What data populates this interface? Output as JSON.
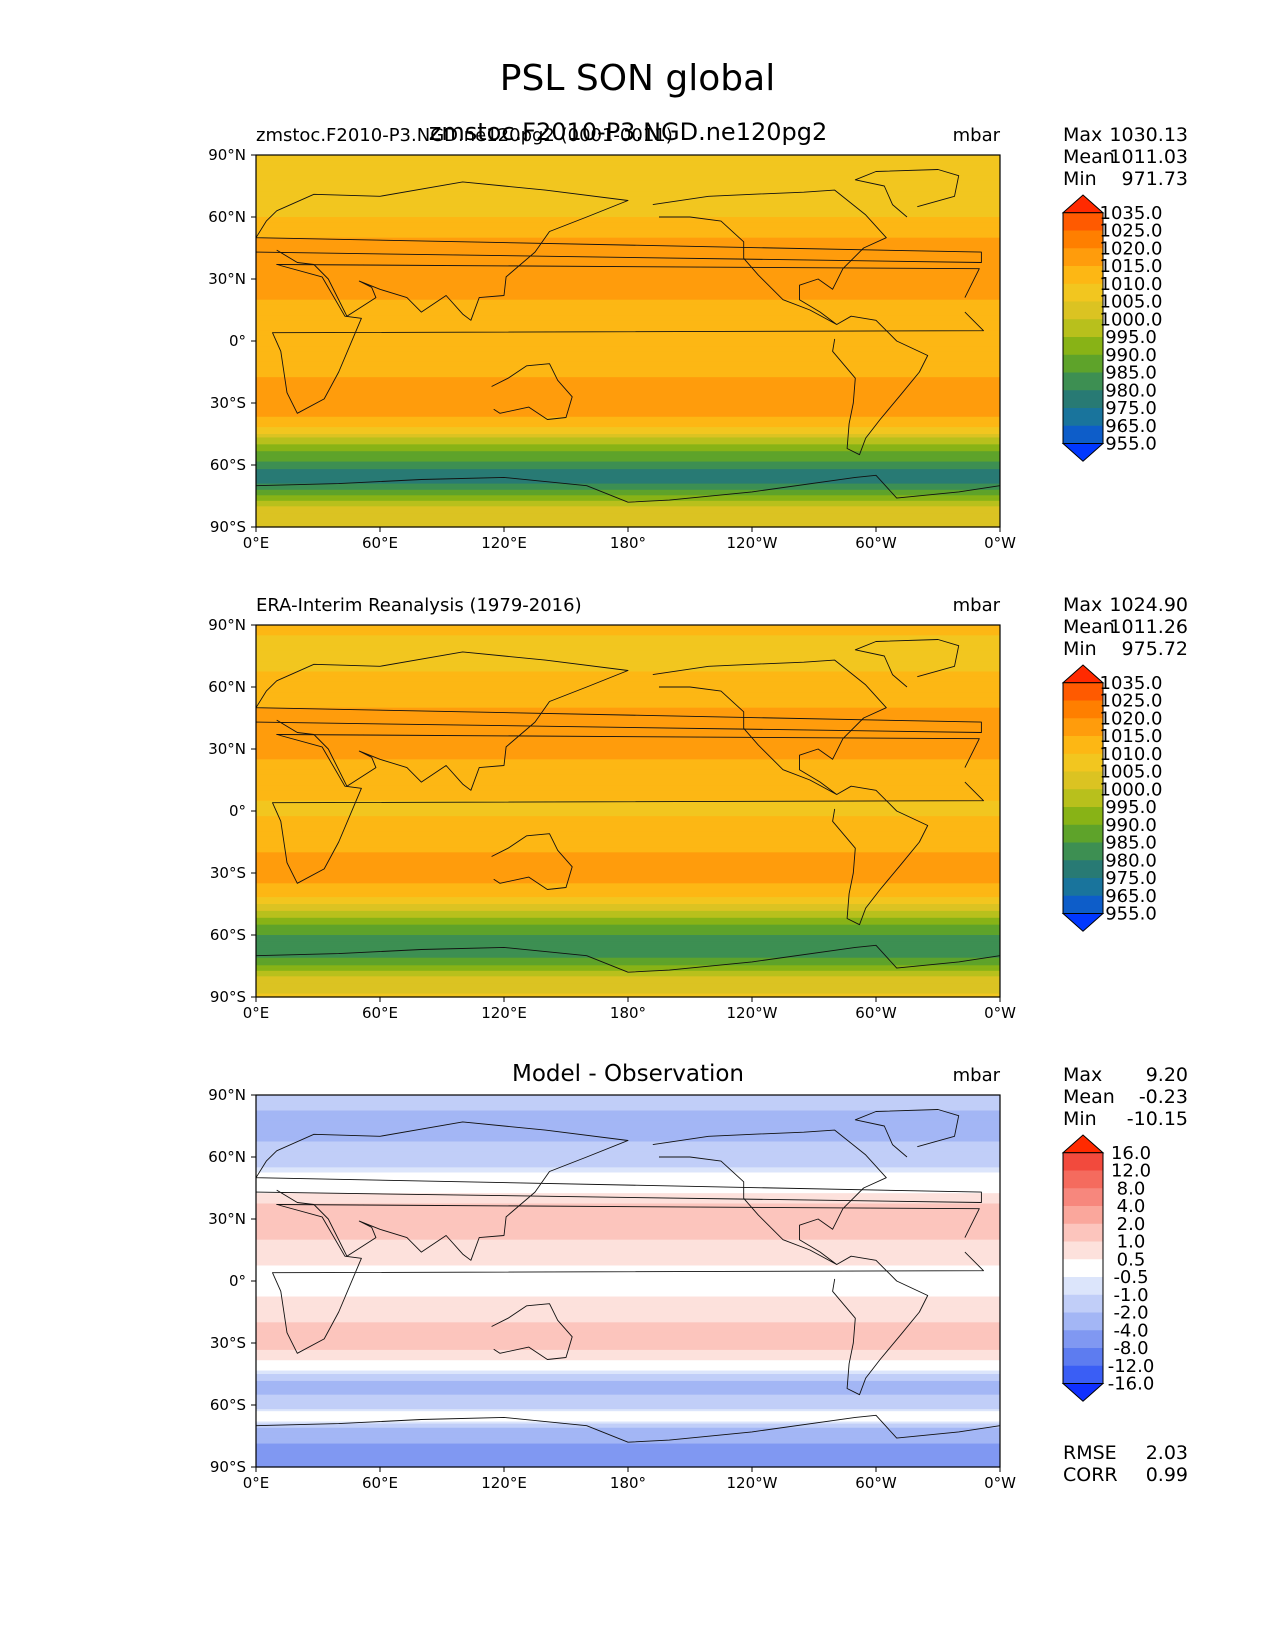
{
  "figure_title": "PSL SON global",
  "chart_data": [
    {
      "type": "contour_map",
      "title": "zmstoc.F2010-P3.NGD.ne120pg2",
      "left_label": "zmstoc.F2010-P3.NGD.ne120pg2 (0001-0011)",
      "units": "mbar",
      "xlabel": "",
      "ylabel": "",
      "x_ticks": [
        "0°E",
        "60°E",
        "120°E",
        "180°",
        "120°W",
        "60°W",
        "0°W"
      ],
      "y_ticks": [
        "90°N",
        "60°N",
        "30°N",
        "0°",
        "30°S",
        "60°S",
        "90°S"
      ],
      "stats": [
        {
          "label": "Max",
          "value": "1030.13"
        },
        {
          "label": "Mean",
          "value": "1011.03"
        },
        {
          "label": "Min",
          "value": "971.73"
        }
      ],
      "colorbar": {
        "levels": [
          "1035.0",
          "1025.0",
          "1020.0",
          "1015.0",
          "1010.0",
          "1005.0",
          "1000.0",
          "995.0",
          "990.0",
          "985.0",
          "980.0",
          "975.0",
          "965.0",
          "955.0"
        ],
        "colors": [
          "#ff2a00",
          "#ff5a00",
          "#ff7f00",
          "#ff9c0c",
          "#fdb714",
          "#f2c61f",
          "#dbc322",
          "#b8c01c",
          "#88b316",
          "#5ea32a",
          "#3d8f52",
          "#287a74",
          "#19749c",
          "#0d5dc9",
          "#0038ff"
        ]
      },
      "lat_profile": [
        {
          "lat": 90,
          "value": 1010
        },
        {
          "lat": 75,
          "value": 1006
        },
        {
          "lat": 60,
          "value": 1010
        },
        {
          "lat": 45,
          "value": 1017
        },
        {
          "lat": 30,
          "value": 1018
        },
        {
          "lat": 15,
          "value": 1013
        },
        {
          "lat": 0,
          "value": 1010
        },
        {
          "lat": -15,
          "value": 1014
        },
        {
          "lat": -30,
          "value": 1019
        },
        {
          "lat": -40,
          "value": 1013
        },
        {
          "lat": -50,
          "value": 995
        },
        {
          "lat": -60,
          "value": 982
        },
        {
          "lat": -66,
          "value": 975
        },
        {
          "lat": -72,
          "value": 985
        },
        {
          "lat": -80,
          "value": 1000
        },
        {
          "lat": -90,
          "value": 1005
        }
      ]
    },
    {
      "type": "contour_map",
      "title": "",
      "left_label": "ERA-Interim Reanalysis (1979-2016)",
      "units": "mbar",
      "xlabel": "",
      "ylabel": "",
      "x_ticks": [
        "0°E",
        "60°E",
        "120°E",
        "180°",
        "120°W",
        "60°W",
        "0°W"
      ],
      "y_ticks": [
        "90°N",
        "60°N",
        "30°N",
        "0°",
        "30°S",
        "60°S",
        "90°S"
      ],
      "stats": [
        {
          "label": "Max",
          "value": "1024.90"
        },
        {
          "label": "Mean",
          "value": "1011.26"
        },
        {
          "label": "Min",
          "value": "975.72"
        }
      ],
      "colorbar": {
        "levels": [
          "1035.0",
          "1025.0",
          "1020.0",
          "1015.0",
          "1010.0",
          "1005.0",
          "1000.0",
          "995.0",
          "990.0",
          "985.0",
          "980.0",
          "975.0",
          "965.0",
          "955.0"
        ],
        "colors": [
          "#ff2a00",
          "#ff5a00",
          "#ff7f00",
          "#ff9c0c",
          "#fdb714",
          "#f2c61f",
          "#dbc322",
          "#b8c01c",
          "#88b316",
          "#5ea32a",
          "#3d8f52",
          "#287a74",
          "#19749c",
          "#0d5dc9",
          "#0038ff"
        ]
      },
      "lat_profile": [
        {
          "lat": 90,
          "value": 1011
        },
        {
          "lat": 75,
          "value": 1008
        },
        {
          "lat": 60,
          "value": 1012
        },
        {
          "lat": 45,
          "value": 1016
        },
        {
          "lat": 30,
          "value": 1017
        },
        {
          "lat": 15,
          "value": 1012
        },
        {
          "lat": 0,
          "value": 1009
        },
        {
          "lat": -15,
          "value": 1013
        },
        {
          "lat": -30,
          "value": 1018
        },
        {
          "lat": -40,
          "value": 1012
        },
        {
          "lat": -50,
          "value": 996
        },
        {
          "lat": -60,
          "value": 984
        },
        {
          "lat": -66,
          "value": 980
        },
        {
          "lat": -72,
          "value": 986
        },
        {
          "lat": -80,
          "value": 1000
        },
        {
          "lat": -90,
          "value": 1006
        }
      ]
    },
    {
      "type": "contour_map",
      "title": "Model - Observation",
      "left_label": "",
      "units": "mbar",
      "xlabel": "",
      "ylabel": "",
      "x_ticks": [
        "0°E",
        "60°E",
        "120°E",
        "180°",
        "120°W",
        "60°W",
        "0°W"
      ],
      "y_ticks": [
        "90°N",
        "60°N",
        "30°N",
        "0°",
        "30°S",
        "60°S",
        "90°S"
      ],
      "stats": [
        {
          "label": "Max",
          "value": "9.20"
        },
        {
          "label": "Mean",
          "value": "-0.23"
        },
        {
          "label": "Min",
          "value": "-10.15"
        }
      ],
      "extra_stats": [
        {
          "label": "RMSE",
          "value": "2.03"
        },
        {
          "label": "CORR",
          "value": "0.99"
        }
      ],
      "colorbar": {
        "levels": [
          "16.0",
          "12.0",
          "8.0",
          "4.0",
          "2.0",
          "1.0",
          "0.5",
          "-0.5",
          "-1.0",
          "-2.0",
          "-4.0",
          "-8.0",
          "-12.0",
          "-16.0"
        ],
        "colors": [
          "#ff2a00",
          "#f24a3d",
          "#f56b5e",
          "#f7877d",
          "#faa79c",
          "#fcc5bd",
          "#fde1dc",
          "#ffffff",
          "#dce5fb",
          "#c1cef8",
          "#a3b6f5",
          "#8098f2",
          "#5d7cf0",
          "#3a5ef5",
          "#0f30ff"
        ]
      },
      "lat_profile": [
        {
          "lat": 90,
          "value": -1.5
        },
        {
          "lat": 75,
          "value": -2.5
        },
        {
          "lat": 60,
          "value": -1.5
        },
        {
          "lat": 45,
          "value": 0.3
        },
        {
          "lat": 30,
          "value": 1.5
        },
        {
          "lat": 15,
          "value": 0.8
        },
        {
          "lat": 0,
          "value": 0.2
        },
        {
          "lat": -15,
          "value": 0.8
        },
        {
          "lat": -30,
          "value": 1.5
        },
        {
          "lat": -40,
          "value": 0.2
        },
        {
          "lat": -50,
          "value": -2.5
        },
        {
          "lat": -60,
          "value": -1.5
        },
        {
          "lat": -66,
          "value": 0.3
        },
        {
          "lat": -72,
          "value": -2.5
        },
        {
          "lat": -80,
          "value": -4.5
        },
        {
          "lat": -90,
          "value": -4.0
        }
      ]
    }
  ]
}
